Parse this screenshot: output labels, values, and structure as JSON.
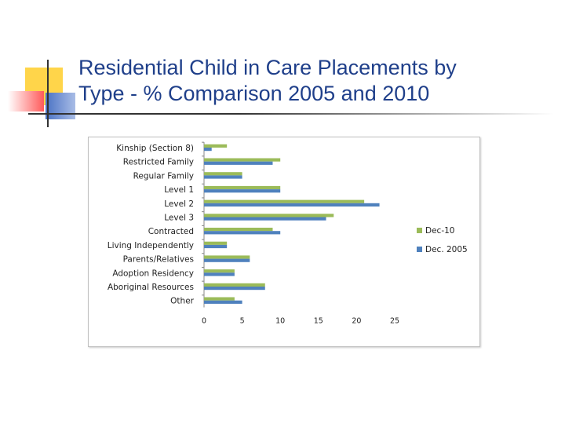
{
  "slide": {
    "title_line1": "Residential Child in Care Placements by",
    "title_line2": "Type  - % Comparison 2005 and 2010"
  },
  "colors": {
    "title": "#1f3f8a",
    "accent_yellow": "#ffd54a",
    "accent_red": "#ff5a5a",
    "accent_blue": "#4a72c4",
    "rule_dark": "#333333",
    "series_dec10": "#9bbb59",
    "series_dec2005": "#4f81bd"
  },
  "chart_data": {
    "type": "bar",
    "orientation": "horizontal",
    "categories": [
      "Kinship (Section 8)",
      "Restricted Family",
      "Regular Family",
      "Level 1",
      "Level 2",
      "Level 3",
      "Contracted",
      "Living Independently",
      "Parents/Relatives",
      "Adoption Residency",
      "Aboriginal Resources",
      "Other"
    ],
    "series": [
      {
        "name": "Dec-10",
        "color": "#9bbb59",
        "values": [
          3,
          10,
          5,
          10,
          21,
          17,
          9,
          3,
          6,
          4,
          8,
          4
        ]
      },
      {
        "name": "Dec. 2005",
        "color": "#4f81bd",
        "values": [
          1,
          9,
          5,
          10,
          23,
          16,
          10,
          3,
          6,
          4,
          8,
          5
        ]
      }
    ],
    "x_ticks": [
      "0",
      "5",
      "10",
      "15",
      "20",
      "25"
    ],
    "xlim": [
      0,
      25
    ],
    "grid": false,
    "legend_position": "right",
    "title": "",
    "xlabel": "",
    "ylabel": ""
  }
}
